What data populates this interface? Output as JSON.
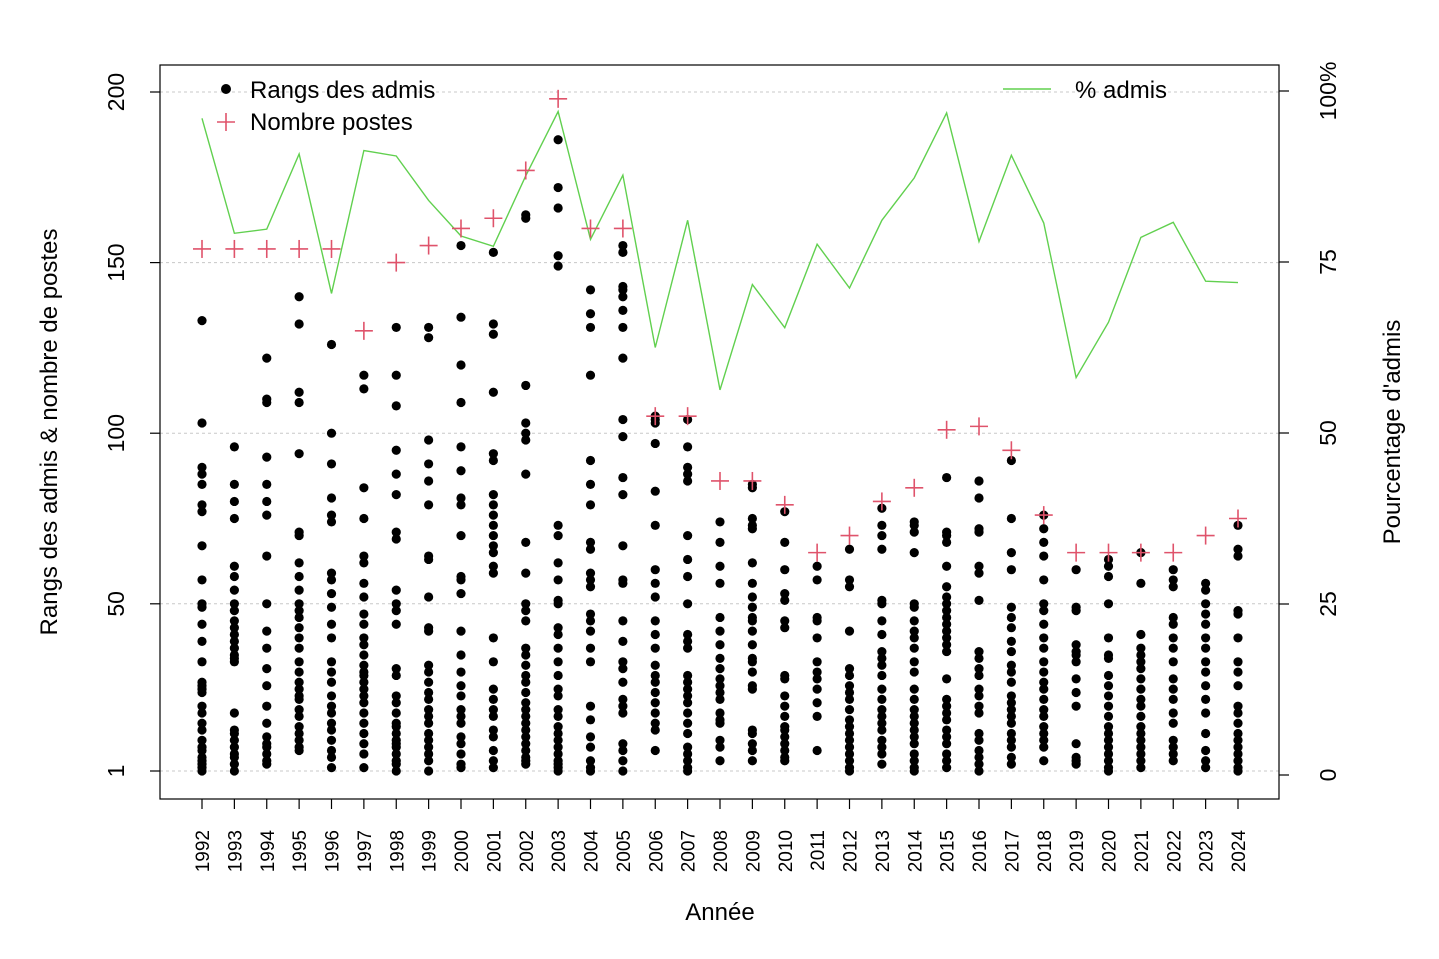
{
  "chart_data": {
    "type": "scatter",
    "xlabel": "Année",
    "ylabel_left": "Rangs des admis & nombre de postes",
    "ylabel_right": "Pourcentage d'admis",
    "years": [
      "1992",
      "1993",
      "1994",
      "1995",
      "1996",
      "1997",
      "1998",
      "1999",
      "2000",
      "2001",
      "2002",
      "2003",
      "2004",
      "2005",
      "2006",
      "2007",
      "2008",
      "2009",
      "2010",
      "2011",
      "2012",
      "2013",
      "2014",
      "2015",
      "2016",
      "2017",
      "2018",
      "2019",
      "2020",
      "2021",
      "2022",
      "2023",
      "2024"
    ],
    "left_axis": {
      "range": [
        1,
        200
      ],
      "ticks": [
        1,
        50,
        100,
        150,
        200
      ],
      "tick_labels": [
        "1",
        "50",
        "100",
        "150",
        "200"
      ]
    },
    "right_axis": {
      "range": [
        0,
        100
      ],
      "ticks": [
        0,
        25,
        50,
        75,
        100
      ],
      "tick_labels": [
        "0",
        "25",
        "50",
        "75",
        "100%"
      ]
    },
    "grid": "horizontal dotted",
    "legend": [
      {
        "label": "Rangs des admis",
        "symbol": "dot",
        "color": "#000000",
        "position": "top-left"
      },
      {
        "label": "Nombre postes",
        "symbol": "plus",
        "color": "#df536b",
        "position": "top-left"
      },
      {
        "label": "% admis",
        "symbol": "line",
        "color": "#61d04f",
        "position": "top-right"
      }
    ],
    "series": [
      {
        "name": "Nombre postes",
        "values": [
          154,
          154,
          154,
          154,
          154,
          130,
          150,
          155,
          160,
          163,
          177,
          198,
          160,
          160,
          105,
          105,
          86,
          86,
          79,
          65,
          70,
          80,
          84,
          101,
          102,
          95,
          76,
          65,
          65,
          65,
          65,
          70,
          75
        ]
      },
      {
        "name": "% admis",
        "values": [
          96,
          79.2,
          79.8,
          90.8,
          70.4,
          91.3,
          90.5,
          84,
          78.8,
          77.3,
          87.6,
          97,
          78.3,
          87.7,
          62.5,
          81.1,
          56.3,
          71.7,
          65.4,
          77.6,
          71.2,
          81.1,
          87.3,
          96.8,
          78,
          90.6,
          80.7,
          58.1,
          66.2,
          78.6,
          80.8,
          72.2,
          72
        ]
      },
      {
        "name": "Rangs des admis",
        "points": [
          [
            133,
            103,
            90,
            88,
            85,
            79,
            77,
            67,
            57,
            50,
            49,
            44,
            39,
            33,
            27,
            26,
            25,
            24,
            20,
            18,
            15,
            13,
            10,
            8,
            7,
            5,
            4,
            3,
            2,
            1
          ],
          [
            96,
            85,
            80,
            75,
            61,
            58,
            54,
            50,
            48,
            45,
            43,
            41,
            39,
            37,
            35,
            34,
            33,
            18,
            13,
            12,
            10,
            8,
            6,
            5,
            3,
            1
          ],
          [
            122,
            110,
            109,
            93,
            85,
            80,
            76,
            64,
            50,
            42,
            37,
            31,
            26,
            20,
            15,
            11,
            9,
            8,
            6,
            4,
            3
          ],
          [
            140,
            132,
            112,
            109,
            94,
            71,
            70,
            62,
            58,
            54,
            50,
            48,
            46,
            43,
            40,
            37,
            33,
            30,
            27,
            25,
            23,
            22,
            19,
            17,
            14,
            12,
            10,
            8,
            7
          ],
          [
            126,
            100,
            91,
            81,
            76,
            74,
            59,
            57,
            53,
            49,
            44,
            40,
            33,
            30,
            27,
            23,
            20,
            18,
            15,
            13,
            10,
            7,
            5,
            2
          ],
          [
            117,
            113,
            84,
            75,
            64,
            62,
            56,
            52,
            47,
            44,
            40,
            38,
            35,
            32,
            30,
            29,
            27,
            25,
            23,
            21,
            18,
            15,
            12,
            9,
            6,
            2
          ],
          [
            131,
            117,
            108,
            95,
            88,
            82,
            71,
            69,
            54,
            50,
            48,
            44,
            31,
            29,
            23,
            21,
            18,
            15,
            14,
            12,
            10,
            9,
            8,
            6,
            4,
            3,
            1
          ],
          [
            131,
            128,
            98,
            91,
            86,
            79,
            64,
            63,
            52,
            43,
            42,
            32,
            30,
            27,
            24,
            22,
            19,
            17,
            15,
            12,
            10,
            8,
            6,
            4,
            1
          ],
          [
            155,
            134,
            120,
            109,
            96,
            89,
            81,
            79,
            70,
            58,
            57,
            53,
            42,
            35,
            30,
            26,
            23,
            19,
            17,
            15,
            11,
            9,
            6,
            3,
            2
          ],
          [
            153,
            132,
            129,
            112,
            94,
            92,
            82,
            79,
            76,
            73,
            70,
            67,
            65,
            61,
            59,
            40,
            33,
            25,
            22,
            19,
            17,
            13,
            11,
            7,
            4,
            2
          ],
          [
            164,
            163,
            114,
            103,
            100,
            98,
            88,
            68,
            59,
            50,
            48,
            45,
            37,
            35,
            32,
            29,
            27,
            24,
            21,
            19,
            17,
            15,
            13,
            11,
            9,
            7,
            5,
            4,
            3
          ],
          [
            186,
            172,
            166,
            152,
            149,
            73,
            70,
            62,
            57,
            51,
            50,
            43,
            41,
            37,
            33,
            29,
            25,
            23,
            19,
            17,
            14,
            12,
            10,
            8,
            6,
            4,
            3,
            2,
            1
          ],
          [
            142,
            135,
            131,
            117,
            92,
            85,
            79,
            68,
            66,
            59,
            57,
            55,
            47,
            45,
            42,
            37,
            33,
            20,
            16,
            11,
            8,
            4,
            2,
            1
          ],
          [
            155,
            153,
            143,
            142,
            140,
            136,
            131,
            122,
            104,
            99,
            87,
            82,
            67,
            57,
            56,
            45,
            39,
            33,
            31,
            27,
            22,
            20,
            18,
            9,
            7,
            4,
            1
          ],
          [
            105,
            104,
            103,
            97,
            83,
            73,
            60,
            56,
            52,
            45,
            41,
            37,
            32,
            29,
            27,
            24,
            21,
            18,
            15,
            13,
            7
          ],
          [
            104,
            96,
            90,
            88,
            86,
            70,
            63,
            58,
            50,
            41,
            39,
            37,
            29,
            27,
            25,
            23,
            21,
            18,
            15,
            12,
            8,
            6,
            4,
            2,
            1
          ],
          [
            74,
            68,
            61,
            56,
            46,
            42,
            38,
            34,
            31,
            28,
            26,
            24,
            22,
            18,
            16,
            15,
            10,
            8,
            4
          ],
          [
            85,
            84,
            75,
            73,
            72,
            62,
            56,
            52,
            49,
            46,
            45,
            42,
            38,
            34,
            33,
            30,
            26,
            25,
            13,
            12,
            9,
            7,
            4
          ],
          [
            77,
            68,
            60,
            53,
            51,
            45,
            43,
            29,
            28,
            23,
            20,
            17,
            14,
            13,
            11,
            9,
            7,
            5,
            4
          ],
          [
            61,
            57,
            46,
            45,
            40,
            33,
            30,
            28,
            25,
            21,
            17,
            7
          ],
          [
            66,
            57,
            55,
            42,
            31,
            29,
            26,
            24,
            22,
            19,
            16,
            14,
            12,
            10,
            8,
            6,
            4,
            2,
            1
          ],
          [
            78,
            73,
            70,
            66,
            51,
            50,
            45,
            41,
            36,
            34,
            32,
            29,
            25,
            22,
            19,
            17,
            15,
            13,
            10,
            8,
            6,
            3
          ],
          [
            74,
            73,
            71,
            65,
            50,
            49,
            45,
            42,
            40,
            37,
            33,
            30,
            25,
            22,
            19,
            17,
            15,
            13,
            11,
            9,
            6,
            4,
            2,
            1
          ],
          [
            87,
            71,
            70,
            68,
            61,
            55,
            52,
            50,
            48,
            46,
            44,
            42,
            40,
            38,
            36,
            28,
            22,
            20,
            18,
            16,
            13,
            11,
            9,
            6,
            4,
            2
          ],
          [
            86,
            81,
            72,
            71,
            61,
            59,
            51,
            36,
            34,
            31,
            29,
            25,
            23,
            20,
            18,
            12,
            10,
            7,
            5,
            3,
            1
          ],
          [
            92,
            75,
            65,
            60,
            49,
            46,
            43,
            39,
            36,
            32,
            30,
            27,
            23,
            21,
            19,
            17,
            15,
            12,
            10,
            8,
            5,
            3
          ],
          [
            76,
            72,
            68,
            64,
            57,
            50,
            48,
            44,
            40,
            37,
            33,
            30,
            27,
            25,
            22,
            19,
            17,
            14,
            12,
            10,
            8,
            4
          ],
          [
            60,
            49,
            48,
            38,
            36,
            35,
            33,
            28,
            24,
            20,
            9,
            5,
            4,
            3
          ],
          [
            63,
            61,
            58,
            50,
            40,
            35,
            34,
            29,
            26,
            23,
            20,
            17,
            14,
            12,
            10,
            8,
            6,
            4,
            2,
            1
          ],
          [
            65,
            56,
            41,
            37,
            35,
            33,
            31,
            28,
            25,
            22,
            20,
            17,
            14,
            12,
            10,
            8,
            6,
            4,
            2
          ],
          [
            60,
            57,
            55,
            46,
            44,
            40,
            37,
            33,
            28,
            25,
            22,
            18,
            15,
            10,
            8,
            6,
            4
          ],
          [
            56,
            54,
            50,
            47,
            44,
            40,
            37,
            33,
            30,
            26,
            22,
            18,
            12,
            7,
            4,
            2
          ],
          [
            73,
            66,
            64,
            48,
            47,
            40,
            33,
            30,
            26,
            20,
            18,
            15,
            12,
            10,
            8,
            6,
            4,
            2,
            1
          ]
        ]
      }
    ]
  }
}
